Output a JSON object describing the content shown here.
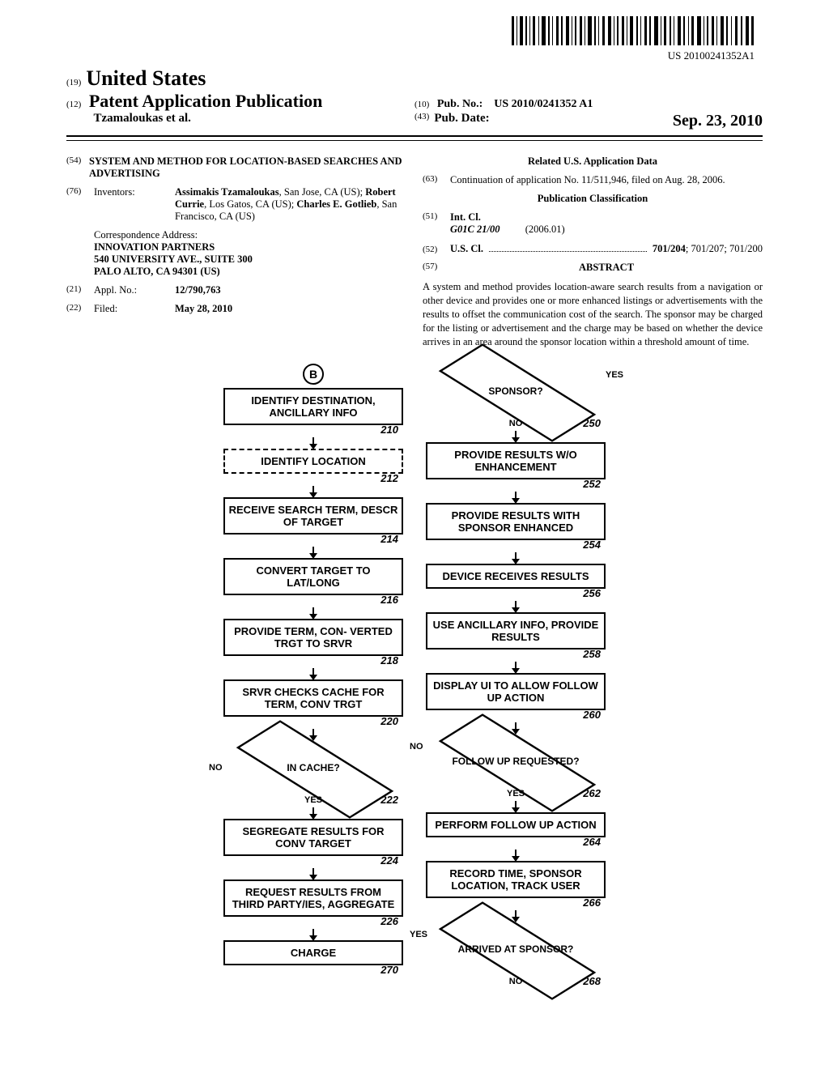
{
  "top_docnum": "US 20100241352A1",
  "header": {
    "country_prefix": "(19)",
    "country": "United States",
    "pub_prefix": "(12)",
    "pub_title": "Patent Application Publication",
    "authors": "Tzamaloukas et al.",
    "pubnum_prefix": "(10)",
    "pubnum_label": "Pub. No.:",
    "pubnum_val": "US 2010/0241352 A1",
    "pubdate_prefix": "(43)",
    "pubdate_label": "Pub. Date:",
    "pubdate_val": "Sep. 23, 2010"
  },
  "fields": {
    "title_num": "(54)",
    "title": "SYSTEM AND METHOD FOR LOCATION-BASED SEARCHES AND ADVERTISING",
    "inventors_num": "(76)",
    "inventors_label": "Inventors:",
    "inventors_html": "Assimakis Tzamaloukas, San Jose, CA (US); Robert Currie, Los Gatos, CA (US); Charles E. Gotlieb, San Francisco, CA (US)",
    "correspondence_label": "Correspondence Address:",
    "correspondence": "INNOVATION PARTNERS\n540 UNIVERSITY AVE., SUITE 300\nPALO ALTO, CA 94301 (US)",
    "applno_num": "(21)",
    "applno_label": "Appl. No.:",
    "applno_val": "12/790,763",
    "filed_num": "(22)",
    "filed_label": "Filed:",
    "filed_val": "May 28, 2010",
    "related_heading": "Related U.S. Application Data",
    "related_num": "(63)",
    "related_text": "Continuation of application No. 11/511,946, filed on Aug. 28, 2006.",
    "pubclass_heading": "Publication Classification",
    "intcl_num": "(51)",
    "intcl_label": "Int. Cl.",
    "intcl_code": "G01C 21/00",
    "intcl_date": "(2006.01)",
    "uscl_num": "(52)",
    "uscl_label": "U.S. Cl.",
    "uscl_vals": "701/204; 701/207; 701/200",
    "abstract_num": "(57)",
    "abstract_heading": "ABSTRACT",
    "abstract_text": "A system and method provides location-aware search results from a navigation or other device and provides one or more enhanced listings or advertisements with the results to offset the communication cost of the search. The sponsor may be charged for the listing or advertisement and the charge may be based on whether the device arrives in an area around the sponsor location within a threshold amount of time."
  },
  "flowchart": {
    "circled": "B",
    "left": [
      {
        "type": "box",
        "text": "IDENTIFY DESTINATION, ANCILLARY INFO",
        "num": "210"
      },
      {
        "type": "box",
        "text": "IDENTIFY LOCATION",
        "num": "212",
        "style": "dashed"
      },
      {
        "type": "box",
        "text": "RECEIVE SEARCH TERM, DESCR OF TARGET",
        "num": "214"
      },
      {
        "type": "box",
        "text": "CONVERT TARGET TO LAT/LONG",
        "num": "216"
      },
      {
        "type": "box",
        "text": "PROVIDE TERM, CON- VERTED TRGT TO SRVR",
        "num": "218"
      },
      {
        "type": "box",
        "text": "SRVR CHECKS CACHE FOR TERM, CONV TRGT",
        "num": "220"
      },
      {
        "type": "diamond",
        "text": "IN CACHE?",
        "num": "222",
        "no": "left",
        "yes": "bottom"
      },
      {
        "type": "box",
        "text": "SEGREGATE RESULTS FOR CONV TARGET",
        "num": "224"
      },
      {
        "type": "box",
        "text": "REQUEST RESULTS FROM THIRD PARTY/IES, AGGREGATE",
        "num": "226"
      },
      {
        "type": "box",
        "text": "CHARGE",
        "num": "270"
      }
    ],
    "right": [
      {
        "type": "diamond",
        "text": "SPONSOR?",
        "num": "250",
        "yes": "right",
        "no": "bottom"
      },
      {
        "type": "box",
        "text": "PROVIDE RESULTS W/O ENHANCEMENT",
        "num": "252"
      },
      {
        "type": "box",
        "text": "PROVIDE RESULTS WITH SPONSOR ENHANCED",
        "num": "254"
      },
      {
        "type": "box",
        "text": "DEVICE RECEIVES RESULTS",
        "num": "256"
      },
      {
        "type": "box",
        "text": "USE ANCILLARY INFO, PROVIDE RESULTS",
        "num": "258"
      },
      {
        "type": "box",
        "text": "DISPLAY UI TO ALLOW FOLLOW UP ACTION",
        "num": "260"
      },
      {
        "type": "diamond",
        "text": "FOLLOW UP REQUESTED?",
        "num": "262",
        "no": "leftmid",
        "yes": "bottom"
      },
      {
        "type": "box",
        "text": "PERFORM FOLLOW UP ACTION",
        "num": "264"
      },
      {
        "type": "box",
        "text": "RECORD TIME, SPONSOR LOCATION, TRACK USER",
        "num": "266"
      },
      {
        "type": "diamond",
        "text": "ARRIVED AT SPONSOR?",
        "num": "268",
        "yes": "leftmid",
        "no": "bottom"
      }
    ],
    "labels": {
      "YES": "YES",
      "NO": "NO"
    }
  }
}
